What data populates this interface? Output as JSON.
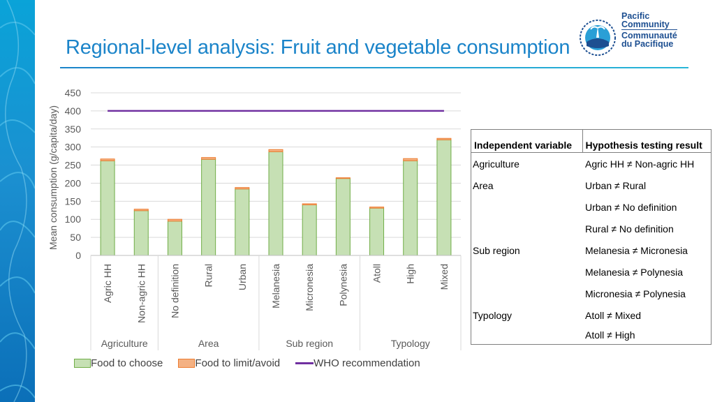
{
  "slide": {
    "title": "Regional-level analysis: Fruit and vegetable consumption"
  },
  "logo": {
    "line1": "Pacific",
    "line2": "Community",
    "line3": "Communauté",
    "line4": "du Pacifique"
  },
  "colors": {
    "food_to_choose": "#c6e0b4",
    "food_to_choose_border": "#70ad47",
    "food_to_limit": "#f4b183",
    "food_to_limit_border": "#ed7d31",
    "who_line": "#7030a0",
    "title": "#1b84c9"
  },
  "chart_data": {
    "type": "bar",
    "stacked": true,
    "title": "",
    "ylabel": "Mean consumption (g/capita/day)",
    "ylim": [
      0,
      450
    ],
    "yticks": [
      0,
      50,
      100,
      150,
      200,
      250,
      300,
      350,
      400,
      450
    ],
    "categories": [
      "Agric HH",
      "Non-agric HH",
      "No definition",
      "Rural",
      "Urban",
      "Melanesia",
      "Micronesia",
      "Polynesia",
      "Atoll",
      "High",
      "Mixed"
    ],
    "groups": [
      {
        "label": "Agriculture",
        "count": 2
      },
      {
        "label": "Area",
        "count": 3
      },
      {
        "label": "Sub region",
        "count": 3
      },
      {
        "label": "Typology",
        "count": 3
      }
    ],
    "series": [
      {
        "name": "Food to choose",
        "values": [
          262,
          124,
          95,
          266,
          184,
          287,
          140,
          213,
          131,
          262,
          320
        ]
      },
      {
        "name": "Food to limit/avoid",
        "values": [
          5,
          4,
          5,
          5,
          4,
          6,
          3,
          2,
          3,
          6,
          4
        ]
      }
    ],
    "reference_line": {
      "name": "WHO recommendation",
      "value": 400
    },
    "legend": [
      "Food to choose",
      "Food to limit/avoid",
      "WHO recommendation"
    ],
    "legend_position": "bottom"
  },
  "hypothesis_table": {
    "headers": [
      "Independent variable",
      "Hypothesis testing result"
    ],
    "rows": [
      [
        "Agriculture",
        "Agric HH ≠ Non-agric HH"
      ],
      [
        "Area",
        "Urban ≠ Rural"
      ],
      [
        "",
        "Urban ≠ No definition"
      ],
      [
        "",
        "Rural ≠ No definition"
      ],
      [
        "Sub region",
        "Melanesia ≠ Micronesia"
      ],
      [
        "",
        "Melanesia ≠ Polynesia"
      ],
      [
        "",
        "Micronesia ≠ Polynesia"
      ],
      [
        "Typology",
        "Atoll ≠ Mixed"
      ],
      [
        "",
        "Atoll ≠ High"
      ]
    ]
  }
}
